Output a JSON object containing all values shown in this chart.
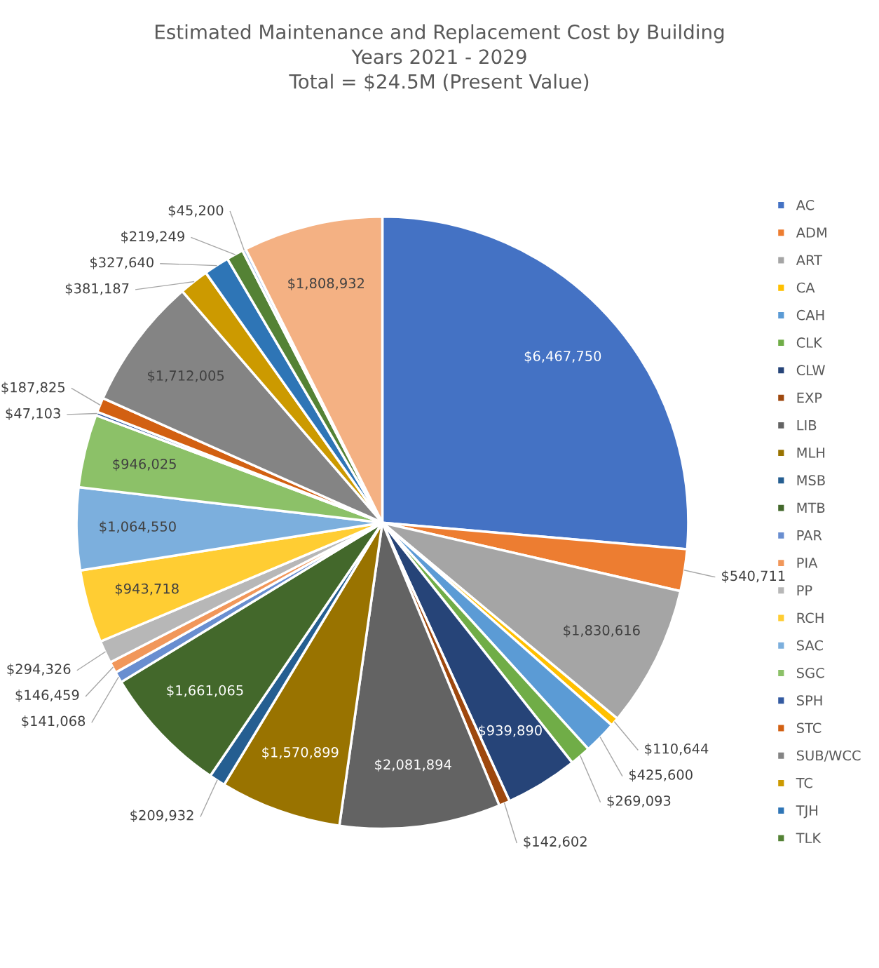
{
  "chart_data": {
    "type": "pie",
    "title": "Estimated Maintenance and Replacement Cost by Building\nYears 2021 - 2029\nTotal = $24.5M (Present Value)",
    "categories": [
      "AC",
      "ADM",
      "ART",
      "CA",
      "CAH",
      "CLK",
      "CLW",
      "EXP",
      "LIB",
      "MLH",
      "MSB",
      "MTB",
      "PAR",
      "PIA",
      "PP",
      "RCH",
      "SAC",
      "SGC",
      "SPH",
      "STC",
      "SUB/WCC",
      "TC",
      "TJH",
      "TLK",
      null,
      null
    ],
    "values": [
      6467750,
      540711,
      1830616,
      110644,
      425600,
      269093,
      939890,
      142602,
      2081894,
      1570899,
      209932,
      1661065,
      141068,
      146459,
      294326,
      943718,
      1064550,
      946025,
      47103,
      187825,
      1712005,
      381187,
      327640,
      219249,
      45200,
      1808932
    ],
    "value_labels": [
      "$6,467,750",
      "$540,711",
      "$1,830,616",
      "$110,644",
      "$425,600",
      "$269,093",
      "$939,890",
      "$142,602",
      "$2,081,894",
      "$1,570,899",
      "$209,932",
      "$1,661,065",
      "$141,068",
      "$146,459",
      "$294,326",
      "$943,718",
      "$1,064,550",
      "$946,025",
      "$47,103",
      "$187,825",
      "$1,712,005",
      "$381,187",
      "$327,640",
      "$219,249",
      "$45,200",
      "$1,808,932"
    ],
    "colors": [
      "#4472c4",
      "#ed7d31",
      "#a5a5a5",
      "#ffc000",
      "#5b9bd5",
      "#70ad47",
      "#264478",
      "#9e480e",
      "#636363",
      "#997300",
      "#255e91",
      "#43682b",
      "#698ed0",
      "#f1975a",
      "#b7b7b7",
      "#ffcd33",
      "#7cafdd",
      "#8cc168",
      "#335aa1",
      "#d26012",
      "#848484",
      "#cc9a00",
      "#2e75b6",
      "#548235",
      "#a9c4eb",
      "#f4b183"
    ],
    "legend": "right"
  }
}
